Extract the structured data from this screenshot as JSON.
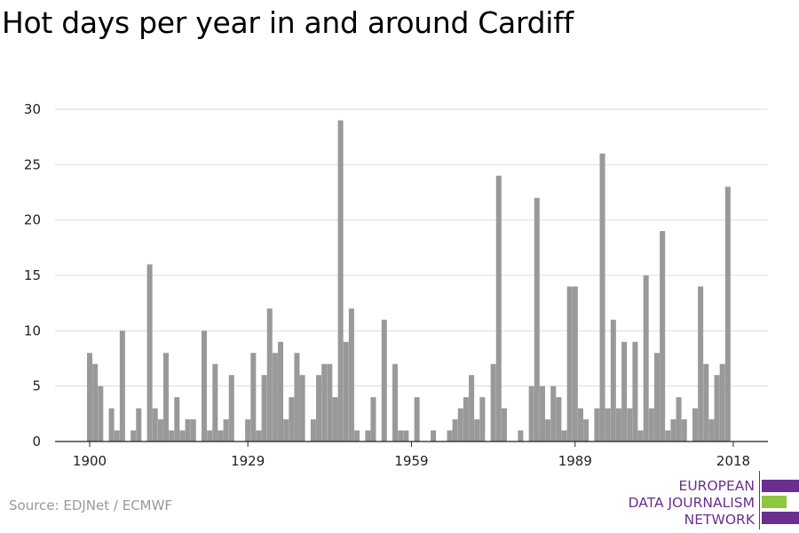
{
  "title": "Hot days per year in and around Cardiff",
  "source": "Source: EDJNet / ECMWF",
  "logo": {
    "lines": [
      "EUROPEAN",
      "DATA JOURNALISM",
      "NETWORK"
    ],
    "colors": {
      "purple": "#6a2f8f",
      "green": "#8dc63f"
    }
  },
  "chart_data": {
    "type": "bar",
    "title": "Hot days per year in and around Cardiff",
    "xlabel": "",
    "ylabel": "",
    "ylim": [
      0,
      30
    ],
    "yticks": [
      0,
      5,
      10,
      15,
      20,
      25,
      30
    ],
    "xticks": [
      1900,
      1929,
      1959,
      1989,
      2018
    ],
    "grid": true,
    "bar_color": "#999999",
    "x": [
      1900,
      1901,
      1902,
      1903,
      1904,
      1905,
      1906,
      1907,
      1908,
      1909,
      1910,
      1911,
      1912,
      1913,
      1914,
      1915,
      1916,
      1917,
      1918,
      1919,
      1920,
      1921,
      1922,
      1923,
      1924,
      1925,
      1926,
      1927,
      1928,
      1929,
      1930,
      1931,
      1932,
      1933,
      1934,
      1935,
      1936,
      1937,
      1938,
      1939,
      1940,
      1941,
      1942,
      1943,
      1944,
      1945,
      1946,
      1947,
      1948,
      1949,
      1950,
      1951,
      1952,
      1953,
      1954,
      1955,
      1956,
      1957,
      1958,
      1959,
      1960,
      1961,
      1962,
      1963,
      1964,
      1965,
      1966,
      1967,
      1968,
      1969,
      1970,
      1971,
      1972,
      1973,
      1974,
      1975,
      1976,
      1977,
      1978,
      1979,
      1980,
      1981,
      1982,
      1983,
      1984,
      1985,
      1986,
      1987,
      1988,
      1989,
      1990,
      1991,
      1992,
      1993,
      1994,
      1995,
      1996,
      1997,
      1998,
      1999,
      2000,
      2001,
      2002,
      2003,
      2004,
      2005,
      2006,
      2007,
      2008,
      2009,
      2010,
      2011,
      2012,
      2013,
      2014,
      2015,
      2016,
      2017,
      2018
    ],
    "values": [
      8,
      7,
      5,
      0,
      3,
      1,
      10,
      0,
      1,
      3,
      0,
      16,
      3,
      2,
      8,
      1,
      4,
      1,
      2,
      2,
      0,
      10,
      1,
      7,
      1,
      2,
      6,
      0,
      0,
      2,
      8,
      1,
      6,
      12,
      8,
      9,
      2,
      4,
      8,
      6,
      0,
      2,
      6,
      7,
      7,
      4,
      29,
      9,
      12,
      1,
      0,
      1,
      4,
      0,
      11,
      0,
      7,
      1,
      1,
      0,
      4,
      0,
      0,
      1,
      0,
      0,
      1,
      2,
      3,
      4,
      6,
      2,
      4,
      0,
      7,
      24,
      3,
      0,
      0,
      1,
      0,
      5,
      22,
      5,
      2,
      5,
      4,
      1,
      14,
      14,
      3,
      2,
      0,
      3,
      26,
      3,
      11,
      3,
      9,
      3,
      9,
      1,
      15,
      3,
      8,
      19,
      1,
      2,
      4,
      2,
      0,
      3,
      14,
      7,
      2,
      6,
      7,
      23,
      0
    ]
  }
}
